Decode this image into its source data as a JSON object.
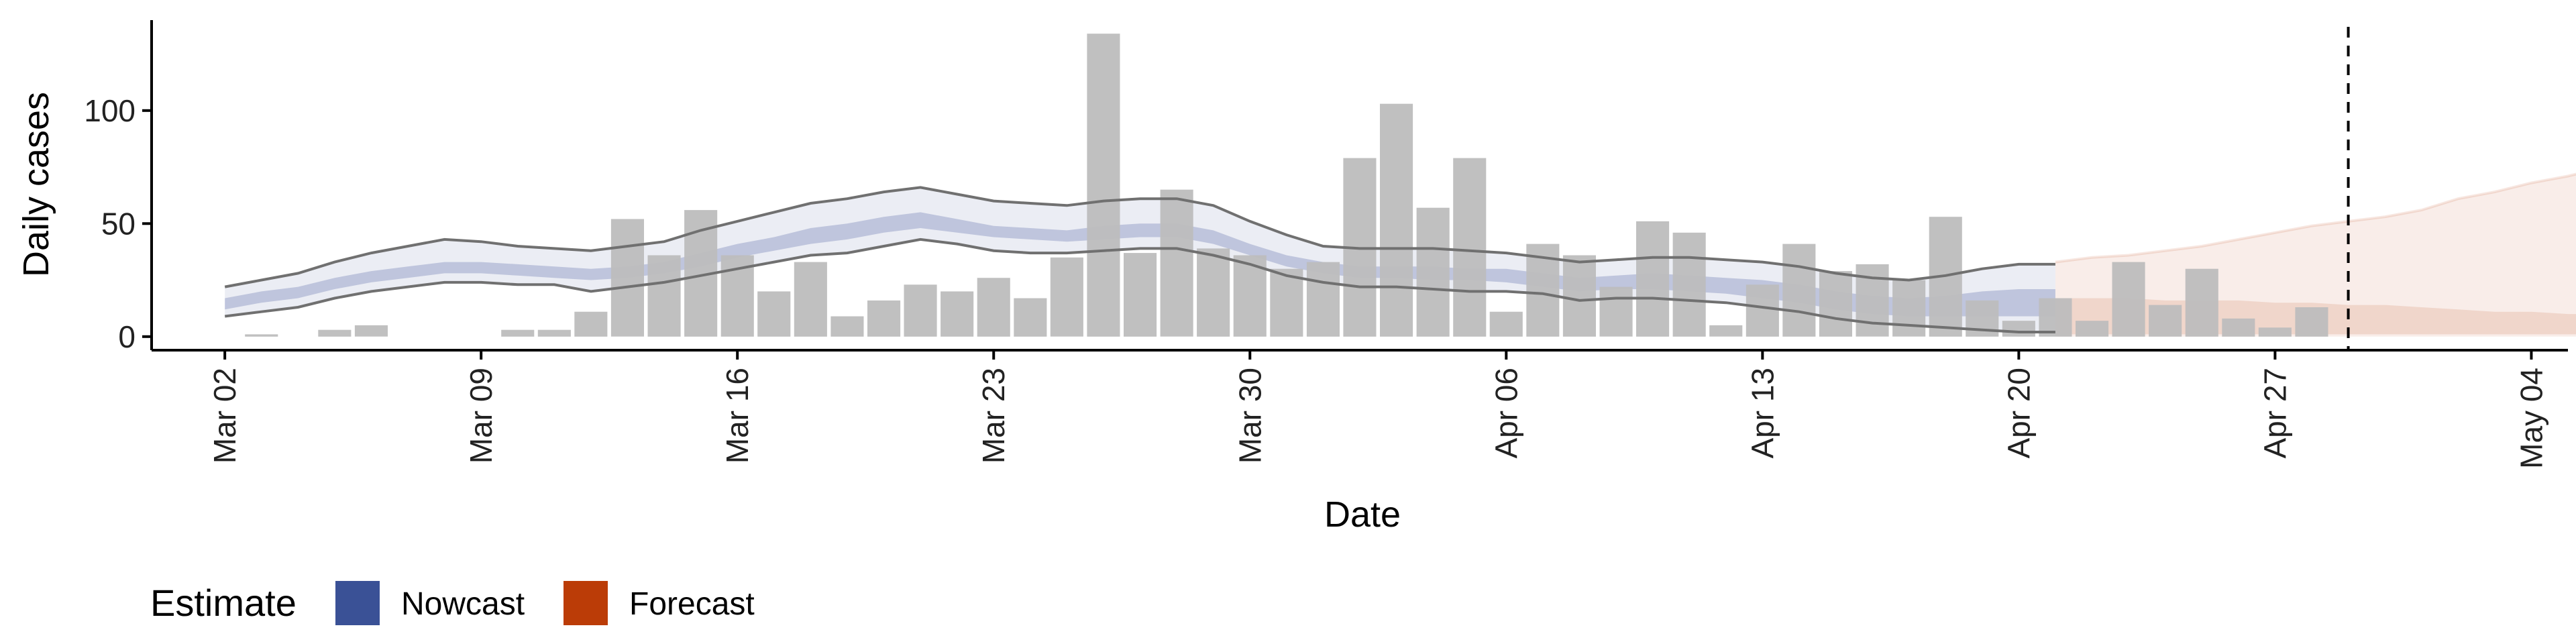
{
  "chart_data": {
    "type": "bar",
    "xlabel": "Date",
    "ylabel": "Daily cases",
    "y_ticks": [
      0,
      50,
      100
    ],
    "ylim": [
      -6,
      140
    ],
    "x_range_days": [
      -2,
      64
    ],
    "x_ticks": [
      {
        "day": 0,
        "label": "Mar 02"
      },
      {
        "day": 7,
        "label": "Mar 09"
      },
      {
        "day": 14,
        "label": "Mar 16"
      },
      {
        "day": 21,
        "label": "Mar 23"
      },
      {
        "day": 28,
        "label": "Mar 30"
      },
      {
        "day": 35,
        "label": "Apr 06"
      },
      {
        "day": 42,
        "label": "Apr 13"
      },
      {
        "day": 49,
        "label": "Apr 20"
      },
      {
        "day": 56,
        "label": "Apr 27"
      },
      {
        "day": 63,
        "label": "May 04"
      }
    ],
    "start_date": "2020-03-02",
    "observed_cases": [
      0,
      1,
      0,
      3,
      5,
      0,
      0,
      0,
      3,
      3,
      11,
      52,
      36,
      56,
      36,
      20,
      33,
      9,
      16,
      23,
      20,
      26,
      17,
      35,
      134,
      37,
      65,
      39,
      36,
      30,
      33,
      79,
      103,
      57,
      79,
      11,
      41,
      36,
      22,
      51,
      46,
      5,
      23,
      41,
      29,
      32,
      25,
      53,
      16,
      7,
      17,
      7,
      33,
      14,
      30,
      8,
      4,
      13
    ],
    "dashed_line_day": 58,
    "nowcast": {
      "upper90": [
        22,
        25,
        28,
        33,
        37,
        40,
        43,
        42,
        40,
        39,
        38,
        40,
        42,
        47,
        51,
        55,
        59,
        61,
        64,
        66,
        63,
        60,
        59,
        58,
        60,
        61,
        61,
        58,
        51,
        45,
        40,
        39,
        39,
        39,
        38,
        37,
        35,
        33,
        34,
        35,
        35,
        34,
        33,
        31,
        28,
        26,
        25,
        27,
        30,
        32,
        32
      ],
      "upper50": [
        17,
        20,
        22,
        26,
        29,
        31,
        33,
        33,
        32,
        31,
        30,
        31,
        33,
        37,
        41,
        44,
        48,
        50,
        53,
        55,
        52,
        49,
        48,
        47,
        49,
        50,
        50,
        47,
        41,
        36,
        33,
        31,
        31,
        31,
        30,
        30,
        28,
        26,
        27,
        28,
        27,
        26,
        25,
        23,
        20,
        18,
        17,
        18,
        20,
        21,
        21
      ],
      "lower50": [
        12,
        15,
        17,
        21,
        24,
        26,
        28,
        28,
        27,
        26,
        25,
        26,
        28,
        31,
        35,
        38,
        41,
        43,
        46,
        48,
        46,
        44,
        43,
        42,
        43,
        44,
        44,
        41,
        36,
        31,
        28,
        26,
        26,
        25,
        25,
        24,
        22,
        20,
        21,
        21,
        20,
        19,
        17,
        15,
        12,
        10,
        9,
        9,
        9,
        9,
        9
      ],
      "lower90": [
        9,
        11,
        13,
        17,
        20,
        22,
        24,
        24,
        23,
        23,
        20,
        22,
        24,
        27,
        30,
        33,
        36,
        37,
        40,
        43,
        41,
        38,
        37,
        37,
        38,
        39,
        39,
        36,
        32,
        27,
        24,
        22,
        22,
        21,
        20,
        20,
        19,
        16,
        17,
        17,
        16,
        15,
        13,
        11,
        8,
        6,
        5,
        4,
        3,
        2,
        2
      ]
    },
    "forecast": {
      "start_day": 50,
      "upper90": [
        33,
        35,
        36,
        38,
        40,
        43,
        46,
        49,
        51,
        53,
        56,
        61,
        64,
        68,
        71,
        75
      ],
      "upper50": [
        17,
        17,
        17,
        16,
        16,
        16,
        15,
        15,
        14,
        14,
        13,
        12,
        11,
        11,
        10,
        10
      ],
      "lower50": [
        1,
        1,
        1,
        1,
        1,
        1,
        1,
        1,
        1,
        1,
        1,
        1,
        1,
        1,
        1,
        1
      ],
      "lower90": [
        0,
        0,
        0,
        0,
        0,
        0,
        0,
        0,
        0,
        0,
        0,
        0,
        0,
        0,
        0,
        0
      ]
    },
    "legend": {
      "title": "Estimate",
      "placement": "bottom-left",
      "items": [
        {
          "label": "Nowcast",
          "color": "#3a5196"
        },
        {
          "label": "Forecast",
          "color": "#bb3c07"
        }
      ]
    },
    "colors": {
      "bars": "#bdbdbd",
      "nowcast_band": "#3a5196",
      "forecast_band": "#bb3c07",
      "ci_line": "#707070",
      "axis": "#000000"
    },
    "grid": false
  }
}
